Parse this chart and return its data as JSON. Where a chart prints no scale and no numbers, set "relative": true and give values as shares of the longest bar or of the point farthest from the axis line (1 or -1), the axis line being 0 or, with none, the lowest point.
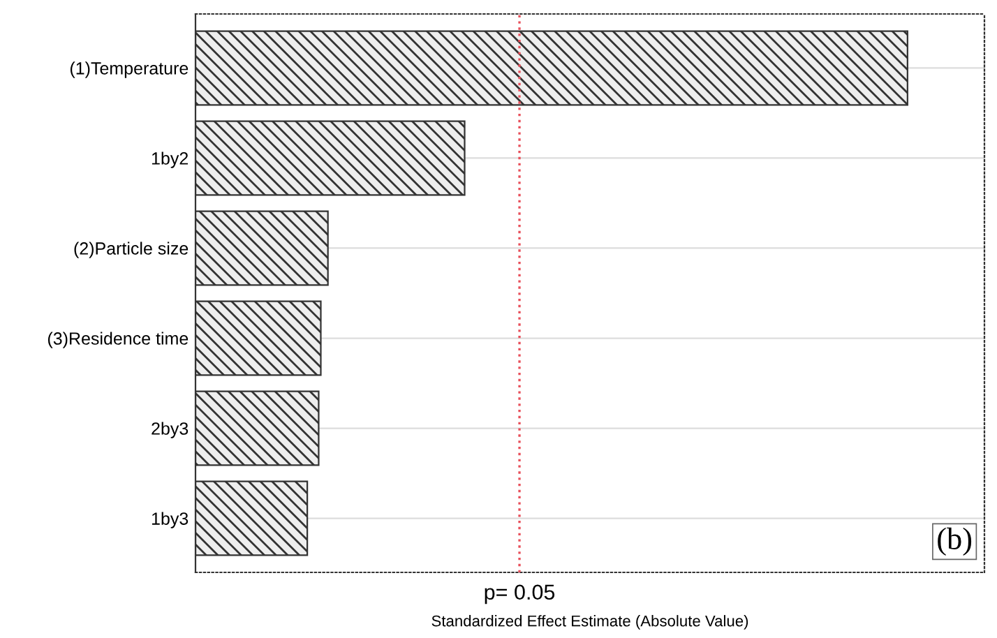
{
  "chart_data": {
    "type": "bar",
    "orientation": "horizontal",
    "relative": true,
    "categories": [
      "(1)Temperature",
      "1by2",
      "(2)Particle size",
      "(3)Residence time",
      "2by3",
      "1by3"
    ],
    "values": [
      1,
      0.378,
      0.186,
      0.176,
      0.173,
      0.157
    ],
    "color": "#333333",
    "xlabel": "Standardized Effect Estimate (Absolute Value)",
    "ref_lines": [
      {
        "axis": "x",
        "value": 0.455,
        "color": "#e8505b",
        "line_style": "dotted"
      }
    ],
    "annotations": [
      "p= 0.05",
      "(b)"
    ],
    "grid": "y",
    "tick_labels": "y",
    "legend": false
  }
}
